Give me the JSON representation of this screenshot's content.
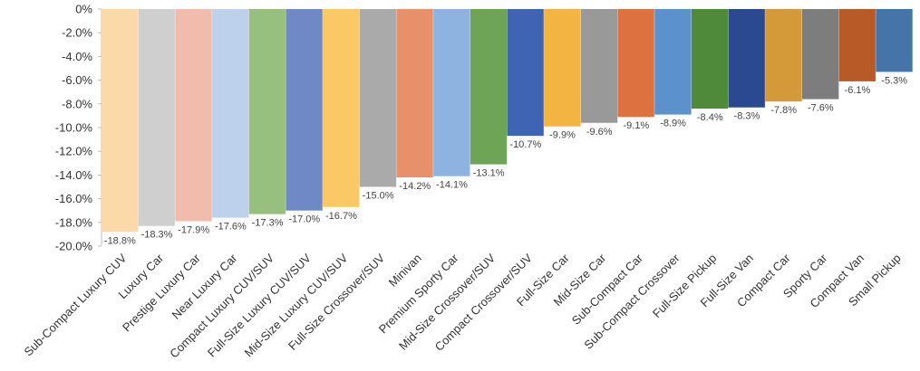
{
  "chart_data": {
    "type": "bar",
    "title": "",
    "xlabel": "",
    "ylabel": "",
    "ylim": [
      -20,
      0
    ],
    "y_ticks": [
      "0%",
      "-2.0%",
      "-4.0%",
      "-6.0%",
      "-8.0%",
      "-10.0%",
      "-12.0%",
      "-14.0%",
      "-16.0%",
      "-18.0%",
      "-20.0%"
    ],
    "y_tick_values": [
      0,
      -2,
      -4,
      -6,
      -8,
      -10,
      -12,
      -14,
      -16,
      -18,
      -20
    ],
    "grid": false,
    "legend": "none",
    "categories": [
      "Sub-Compact Luxury CUV",
      "Luxury Car",
      "Prestige Luxury Car",
      "Near Luxury Car",
      "Compact Luxury CUV/SUV",
      "Full-Size Luxury CUV/SUV",
      "Mid-Size Luxury CUV/SUV",
      "Full-Size Crossover/SUV",
      "Minivan",
      "Premium Sporty Car",
      "Mid-Size Crossover/SUV",
      "Compact Crossover/SUV",
      "Full-Size Car",
      "Mid-Size Car",
      "Sub-Compact Car",
      "Sub-Compact Crossover",
      "Full-Size Pickup",
      "Full-Size Van",
      "Compact Car",
      "Sporty Car",
      "Compact Van",
      "Small Pickup"
    ],
    "values": [
      -18.8,
      -18.3,
      -17.9,
      -17.6,
      -17.3,
      -17.0,
      -16.7,
      -15.0,
      -14.2,
      -14.1,
      -13.1,
      -10.7,
      -9.9,
      -9.6,
      -9.1,
      -8.9,
      -8.4,
      -8.3,
      -7.8,
      -7.6,
      -6.1,
      -5.3
    ],
    "data_labels": [
      "-18.8%",
      "-18.3%",
      "-17.9%",
      "-17.6%",
      "-17.3%",
      "-17.0%",
      "-16.7%",
      "-15.0%",
      "-14.2%",
      "-14.1%",
      "-13.1%",
      "-10.7%",
      "-9.9%",
      "-9.6%",
      "-9.1%",
      "-8.9%",
      "-8.4%",
      "-8.3%",
      "-7.8%",
      "-7.6%",
      "-6.1%",
      "-5.3%"
    ],
    "colors": [
      "#fcd9a8",
      "#cfcfcf",
      "#f2bcac",
      "#bdd0ec",
      "#97c07e",
      "#6f88c6",
      "#fac965",
      "#aaaaaa",
      "#e8906a",
      "#8fb3e0",
      "#6ea456",
      "#3f64b4",
      "#f3b441",
      "#999999",
      "#dd7240",
      "#5b92cc",
      "#4e8a3a",
      "#2a4990",
      "#d49a3a",
      "#7d7d7d",
      "#b85a28",
      "#4474a8"
    ]
  }
}
